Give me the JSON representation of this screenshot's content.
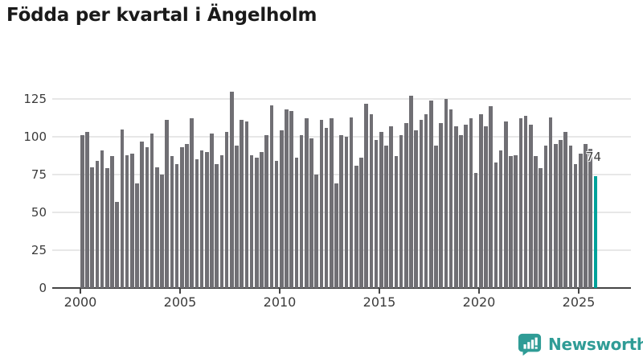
{
  "title": "Födda per kvartal i Ängelholm",
  "chart_data": {
    "type": "bar",
    "title": "Födda per kvartal i Ängelholm",
    "x_unit": "quarter",
    "start": "2000 Q1",
    "end": "2025 Q4",
    "values": [
      101,
      103,
      80,
      84,
      91,
      79,
      87,
      57,
      105,
      88,
      89,
      69,
      97,
      93,
      102,
      80,
      75,
      111,
      87,
      82,
      93,
      95,
      112,
      85,
      91,
      90,
      102,
      82,
      88,
      103,
      130,
      94,
      111,
      110,
      88,
      86,
      90,
      101,
      121,
      84,
      104,
      118,
      117,
      86,
      101,
      112,
      99,
      75,
      111,
      106,
      112,
      69,
      101,
      100,
      113,
      81,
      86,
      122,
      115,
      98,
      103,
      94,
      107,
      87,
      101,
      109,
      127,
      104,
      111,
      115,
      124,
      94,
      109,
      125,
      118,
      107,
      101,
      108,
      112,
      76,
      115,
      107,
      120,
      83,
      91,
      110,
      87,
      88,
      112,
      114,
      108,
      87,
      79,
      94,
      113,
      95,
      98,
      103,
      94,
      82,
      89,
      95,
      92,
      74
    ],
    "x_tick_labels": [
      "2000",
      "2005",
      "2010",
      "2015",
      "2020",
      "2025"
    ],
    "y_tick_values": [
      0,
      25,
      50,
      75,
      100,
      125
    ],
    "ylim": [
      0,
      132
    ],
    "grid": "horizontal",
    "legend": "none",
    "bar_color": "#706F74",
    "highlight": {
      "index": 103,
      "color": "#00A29A",
      "label": "74"
    }
  },
  "footer": {
    "brand_name": "Newsworthy",
    "icon": "newsworthy-speech-bubble-chart-icon",
    "brand_color": "#2F9C96"
  },
  "colors": {
    "background": "#FFFFFF",
    "title_text": "#1A1A1A",
    "axis_text": "#3B3B3B",
    "axis_line": "#454545",
    "gridline": "#E7E7E7",
    "bar": "#706F74",
    "highlight": "#00A29A",
    "brand": "#2F9C96"
  }
}
